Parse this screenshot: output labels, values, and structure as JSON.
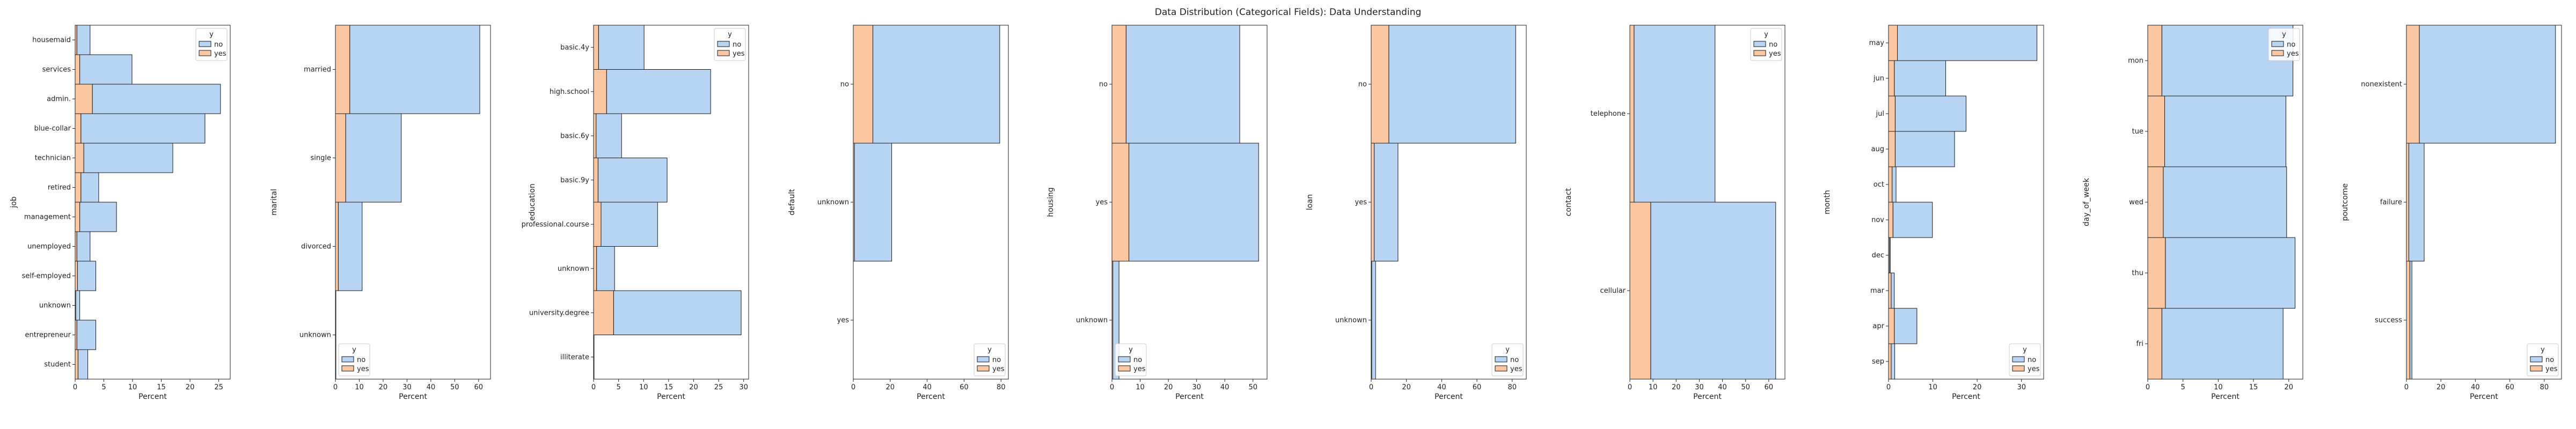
{
  "figure": {
    "title": "Data Distribution (Categorical Fields): Data Understanding"
  },
  "colors": {
    "no": "#b8d4f3",
    "yes": "#fbc7a2",
    "edge": "#1a1a1a"
  },
  "chart_data": [
    {
      "type": "bar",
      "orientation": "horizontal",
      "stacked": true,
      "ylabel": "job",
      "xlabel": "Percent",
      "xlim": [
        0,
        27
      ],
      "xticks": [
        0,
        5,
        10,
        15,
        20,
        25
      ],
      "categories": [
        "housemaid",
        "services",
        "admin.",
        "blue-collar",
        "technician",
        "retired",
        "management",
        "unemployed",
        "self-employed",
        "unknown",
        "entrepreneur",
        "student"
      ],
      "legend": {
        "title": "y",
        "position": "top-right",
        "entries": [
          "no",
          "yes"
        ]
      },
      "series": [
        {
          "name": "no",
          "values": [
            2.3,
            9.1,
            22.3,
            21.6,
            15.5,
            3.1,
            6.4,
            2.3,
            3.2,
            0.7,
            3.3,
            1.7
          ]
        },
        {
          "name": "yes",
          "values": [
            0.3,
            0.8,
            3.0,
            1.0,
            1.5,
            1.0,
            0.8,
            0.3,
            0.4,
            0.1,
            0.3,
            0.5
          ]
        }
      ]
    },
    {
      "type": "bar",
      "orientation": "horizontal",
      "stacked": true,
      "ylabel": "marital",
      "xlabel": "Percent",
      "xlim": [
        0,
        65
      ],
      "xticks": [
        0,
        10,
        20,
        30,
        40,
        50,
        60
      ],
      "categories": [
        "married",
        "single",
        "divorced",
        "unknown"
      ],
      "legend": {
        "title": "y",
        "position": "bottom-left",
        "entries": [
          "no",
          "yes"
        ]
      },
      "series": [
        {
          "name": "no",
          "values": [
            54.5,
            23.3,
            10.0,
            0.2
          ]
        },
        {
          "name": "yes",
          "values": [
            6.0,
            4.3,
            1.2,
            0.0
          ]
        }
      ]
    },
    {
      "type": "bar",
      "orientation": "horizontal",
      "stacked": true,
      "ylabel": "education",
      "xlabel": "Percent",
      "xlim": [
        0,
        31
      ],
      "xticks": [
        0,
        5,
        10,
        15,
        20,
        25,
        30
      ],
      "categories": [
        "basic.4y",
        "high.school",
        "basic.6y",
        "basic.9y",
        "professional.course",
        "unknown",
        "university.degree",
        "illiterate"
      ],
      "legend": {
        "title": "y",
        "position": "top-right",
        "entries": [
          "no",
          "yes"
        ]
      },
      "series": [
        {
          "name": "no",
          "values": [
            9.1,
            20.8,
            5.1,
            13.8,
            11.3,
            3.6,
            25.5,
            0.1
          ]
        },
        {
          "name": "yes",
          "values": [
            1.0,
            2.6,
            0.5,
            0.9,
            1.5,
            0.6,
            4.0,
            0.0
          ]
        }
      ]
    },
    {
      "type": "bar",
      "orientation": "horizontal",
      "stacked": true,
      "ylabel": "default",
      "xlabel": "Percent",
      "xlim": [
        0,
        84
      ],
      "xticks": [
        0,
        20,
        40,
        60,
        80
      ],
      "categories": [
        "no",
        "unknown",
        "yes"
      ],
      "legend": {
        "title": "y",
        "position": "bottom-right",
        "entries": [
          "no",
          "yes"
        ]
      },
      "series": [
        {
          "name": "no",
          "values": [
            68.7,
            20.2,
            0.0
          ]
        },
        {
          "name": "yes",
          "values": [
            10.6,
            0.6,
            0.0
          ]
        }
      ]
    },
    {
      "type": "bar",
      "orientation": "horizontal",
      "stacked": true,
      "ylabel": "housing",
      "xlabel": "Percent",
      "xlim": [
        0,
        55
      ],
      "xticks": [
        0,
        10,
        20,
        30,
        40,
        50
      ],
      "categories": [
        "no",
        "yes",
        "unknown"
      ],
      "legend": {
        "title": "y",
        "position": "bottom-left",
        "entries": [
          "no",
          "yes"
        ]
      },
      "series": [
        {
          "name": "no",
          "values": [
            40.3,
            46.0,
            2.2
          ]
        },
        {
          "name": "yes",
          "values": [
            5.0,
            6.0,
            0.3
          ]
        }
      ]
    },
    {
      "type": "bar",
      "orientation": "horizontal",
      "stacked": true,
      "ylabel": "loan",
      "xlabel": "Percent",
      "xlim": [
        0,
        88
      ],
      "xticks": [
        0,
        20,
        40,
        60,
        80
      ],
      "categories": [
        "no",
        "yes",
        "unknown"
      ],
      "legend": {
        "title": "y",
        "position": "bottom-right",
        "entries": [
          "no",
          "yes"
        ]
      },
      "series": [
        {
          "name": "no",
          "values": [
            72.0,
            13.5,
            2.2
          ]
        },
        {
          "name": "yes",
          "values": [
            10.0,
            1.7,
            0.3
          ]
        }
      ]
    },
    {
      "type": "bar",
      "orientation": "horizontal",
      "stacked": true,
      "ylabel": "contact",
      "xlabel": "Percent",
      "xlim": [
        0,
        67
      ],
      "xticks": [
        0,
        10,
        20,
        30,
        40,
        50,
        60
      ],
      "categories": [
        "telephone",
        "cellular"
      ],
      "legend": {
        "title": "y",
        "position": "top-right",
        "entries": [
          "no",
          "yes"
        ]
      },
      "series": [
        {
          "name": "no",
          "values": [
            35.0,
            54.0
          ]
        },
        {
          "name": "yes",
          "values": [
            1.8,
            9.0
          ]
        }
      ]
    },
    {
      "type": "bar",
      "orientation": "horizontal",
      "stacked": true,
      "ylabel": "month",
      "xlabel": "Percent",
      "xlim": [
        0,
        35
      ],
      "xticks": [
        0,
        10,
        20,
        30
      ],
      "categories": [
        "may",
        "jun",
        "jul",
        "aug",
        "oct",
        "nov",
        "dec",
        "mar",
        "apr",
        "sep"
      ],
      "legend": {
        "title": "y",
        "position": "bottom-right",
        "entries": [
          "no",
          "yes"
        ]
      },
      "series": [
        {
          "name": "no",
          "values": [
            31.5,
            11.6,
            16.0,
            13.4,
            0.9,
            8.9,
            0.2,
            0.7,
            5.1,
            0.8
          ]
        },
        {
          "name": "yes",
          "values": [
            2.0,
            1.3,
            1.5,
            1.5,
            0.8,
            1.0,
            0.2,
            0.6,
            1.3,
            0.6
          ]
        }
      ]
    },
    {
      "type": "bar",
      "orientation": "horizontal",
      "stacked": true,
      "ylabel": "day_of_week",
      "xlabel": "Percent",
      "xlim": [
        0,
        22
      ],
      "xticks": [
        0,
        5,
        10,
        15,
        20
      ],
      "categories": [
        "mon",
        "tue",
        "wed",
        "thu",
        "fri"
      ],
      "legend": {
        "title": "y",
        "position": "top-right",
        "entries": [
          "no",
          "yes"
        ]
      },
      "series": [
        {
          "name": "no",
          "values": [
            18.6,
            17.2,
            17.5,
            18.4,
            17.2
          ]
        },
        {
          "name": "yes",
          "values": [
            2.0,
            2.4,
            2.2,
            2.5,
            2.0
          ]
        }
      ]
    },
    {
      "type": "bar",
      "orientation": "horizontal",
      "stacked": true,
      "ylabel": "poutcome",
      "xlabel": "Percent",
      "xlim": [
        0,
        90
      ],
      "xticks": [
        0,
        20,
        40,
        60,
        80
      ],
      "categories": [
        "nonexistent",
        "failure",
        "success"
      ],
      "legend": {
        "title": "y",
        "position": "bottom-right",
        "entries": [
          "no",
          "yes"
        ]
      },
      "series": [
        {
          "name": "no",
          "values": [
            79.0,
            8.9,
            1.2
          ]
        },
        {
          "name": "yes",
          "values": [
            7.5,
            1.4,
            2.0
          ]
        }
      ]
    }
  ]
}
